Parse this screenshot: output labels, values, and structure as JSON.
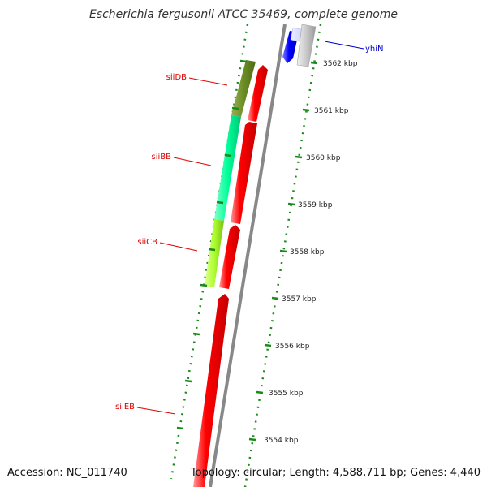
{
  "title": "Escherichia fergusonii ATCC 35469, complete genome",
  "footer": {
    "accession": "Accession: NC_011740",
    "topology": "Topology: circular; Length: 4,588,711 bp; Genes: 4,440"
  },
  "ticks": [
    {
      "label": "3562 kbp"
    },
    {
      "label": "3561 kbp"
    },
    {
      "label": "3560 kbp"
    },
    {
      "label": "3559 kbp"
    },
    {
      "label": "3558 kbp"
    },
    {
      "label": "3557 kbp"
    },
    {
      "label": "3556 kbp"
    },
    {
      "label": "3555 kbp"
    },
    {
      "label": "3554 kbp"
    }
  ],
  "genes": [
    {
      "name": "siiDB",
      "strand": "forward",
      "color": "#dd0000"
    },
    {
      "name": "siiBB",
      "strand": "forward",
      "color": "#dd0000"
    },
    {
      "name": "siiCB",
      "strand": "forward",
      "color": "#dd0000"
    },
    {
      "name": "siiEB",
      "strand": "forward",
      "color": "#dd0000"
    },
    {
      "name": "yhiN",
      "strand": "reverse",
      "color": "#0000cc"
    }
  ],
  "colors": {
    "forward_gene": "#ff0000",
    "reverse_gene": "#0000ff",
    "backbone": "#888888",
    "tick_marks": "#1a8a1a",
    "siiDB_band": "#6b8e23",
    "siiBB_band": "#00ff99",
    "siiCB_band": "#adff2f"
  }
}
